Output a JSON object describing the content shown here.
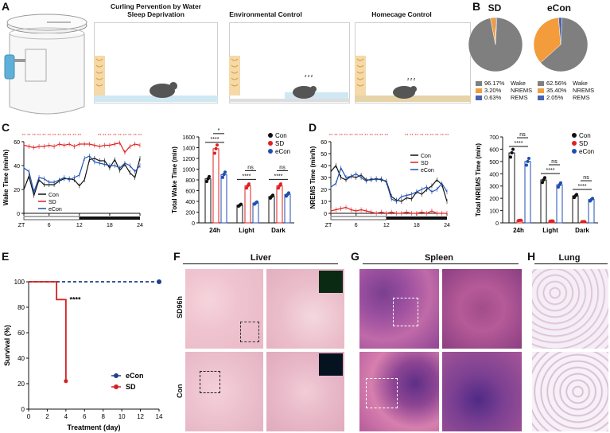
{
  "panels": {
    "A": "A",
    "B": "B",
    "C": "C",
    "D": "D",
    "E": "E",
    "F": "F",
    "G": "G",
    "H": "H"
  },
  "panelA": {
    "titles": [
      "Curling Pervention by Water\nSleep Deprivation",
      "Environmental Control",
      "Homecage Control"
    ],
    "zzz": "z z z"
  },
  "panelB": {
    "charts": [
      {
        "title": "SD",
        "slices": [
          {
            "label": "Wake",
            "value": 96.17,
            "text": "96.17%",
            "color": "#7f7f7f"
          },
          {
            "label": "NREMS",
            "value": 3.2,
            "text": "3.20%",
            "color": "#f39c3b"
          },
          {
            "label": "REMS",
            "value": 0.63,
            "text": "0.63%",
            "color": "#4863b0"
          }
        ]
      },
      {
        "title": "eCon",
        "slices": [
          {
            "label": "Wake",
            "value": 62.56,
            "text": "62.56%",
            "color": "#7f7f7f"
          },
          {
            "label": "NREMS",
            "value": 35.4,
            "text": "35.40%",
            "color": "#f39c3b"
          },
          {
            "label": "REMS",
            "value": 2.05,
            "text": "2.05%",
            "color": "#4863b0"
          }
        ]
      }
    ]
  },
  "chart_data": [
    {
      "id": "C-left",
      "type": "line",
      "ylabel": "Wake Time (min/h)",
      "xlabel": "ZT",
      "x": [
        1,
        2,
        3,
        4,
        5,
        6,
        7,
        8,
        9,
        10,
        11,
        12,
        13,
        14,
        15,
        16,
        17,
        18,
        19,
        20,
        21,
        22,
        23,
        24
      ],
      "xticks": [
        "ZT",
        "6",
        "12",
        "18",
        "24"
      ],
      "yticks": [
        "0",
        "20",
        "40",
        "60"
      ],
      "ylim": [
        0,
        60
      ],
      "series": [
        {
          "name": "Con",
          "color": "#111111",
          "values": [
            20,
            31,
            15,
            28,
            24,
            24,
            24,
            27,
            29,
            29,
            28,
            23,
            28,
            45,
            46,
            44,
            44,
            38,
            45,
            36,
            41,
            34,
            30,
            46
          ]
        },
        {
          "name": "SD",
          "color": "#e02020",
          "values": [
            57,
            56,
            55,
            56,
            56,
            57,
            56,
            58,
            57,
            58,
            56,
            58,
            58,
            58,
            57,
            56,
            57,
            57,
            58,
            59,
            51,
            56,
            58,
            57
          ]
        },
        {
          "name": "eCon",
          "color": "#1f4fb0",
          "values": [
            38,
            35,
            18,
            30,
            29,
            26,
            26,
            28,
            30,
            28,
            30,
            32,
            46,
            48,
            43,
            42,
            41,
            40,
            40,
            38,
            42,
            40,
            35,
            40
          ]
        }
      ]
    },
    {
      "id": "C-right",
      "type": "bar",
      "ylabel": "Total Wake Time (min)",
      "categories": [
        "24h",
        "Light",
        "Dark"
      ],
      "yticks": [
        "0",
        "200",
        "400",
        "600",
        "800",
        "1000",
        "1200",
        "1400",
        "1600"
      ],
      "ylim": [
        0,
        1600
      ],
      "series": [
        {
          "name": "Con",
          "color": "#111111",
          "values": [
            820,
            330,
            490
          ]
        },
        {
          "name": "SD",
          "color": "#e02020",
          "values": [
            1380,
            690,
            690
          ]
        },
        {
          "name": "eCon",
          "color": "#1f4fb0",
          "values": [
            900,
            370,
            530
          ]
        }
      ],
      "sig": [
        {
          "text": "*",
          "level": "top-24h"
        },
        {
          "text": "****"
        },
        {
          "text": "ns"
        },
        {
          "text": "****"
        },
        {
          "text": "ns"
        },
        {
          "text": "****"
        }
      ]
    },
    {
      "id": "D-left",
      "type": "line",
      "ylabel": "NREMS Time (min/h)",
      "xlabel": "ZT",
      "x": [
        1,
        2,
        3,
        4,
        5,
        6,
        7,
        8,
        9,
        10,
        11,
        12,
        13,
        14,
        15,
        16,
        17,
        18,
        19,
        20,
        21,
        22,
        23,
        24
      ],
      "xticks": [
        "ZT",
        "6",
        "12",
        "18",
        "24"
      ],
      "yticks": [
        "0",
        "10",
        "20",
        "30",
        "40",
        "50",
        "60"
      ],
      "ylim": [
        0,
        60
      ],
      "series": [
        {
          "name": "Con",
          "color": "#111111",
          "values": [
            35,
            40,
            30,
            28,
            31,
            30,
            32,
            28,
            28,
            29,
            28,
            27,
            14,
            11,
            10,
            13,
            12,
            18,
            16,
            20,
            23,
            28,
            24,
            10
          ]
        },
        {
          "name": "SD",
          "color": "#e02020",
          "values": [
            2,
            3,
            4,
            5,
            3,
            2,
            3,
            2,
            1,
            0,
            1,
            0,
            1,
            0,
            0,
            1,
            0,
            0,
            1,
            0,
            2,
            0,
            0,
            0
          ]
        },
        {
          "name": "eCon",
          "color": "#1f4fb0",
          "values": [
            22,
            25,
            38,
            30,
            31,
            33,
            30,
            27,
            29,
            28,
            29,
            26,
            12,
            10,
            14,
            15,
            16,
            18,
            20,
            22,
            18,
            20,
            25,
            18
          ]
        }
      ]
    },
    {
      "id": "D-right",
      "type": "bar",
      "ylabel": "Total NREMS Time (min)",
      "categories": [
        "24h",
        "Light",
        "Dark"
      ],
      "yticks": [
        "0",
        "100",
        "200",
        "300",
        "400",
        "500",
        "600",
        "700"
      ],
      "ylim": [
        0,
        700
      ],
      "series": [
        {
          "name": "Con",
          "color": "#111111",
          "values": [
            570,
            350,
            220
          ]
        },
        {
          "name": "SD",
          "color": "#e02020",
          "values": [
            20,
            15,
            10
          ]
        },
        {
          "name": "eCon",
          "color": "#1f4fb0",
          "values": [
            500,
            310,
            190
          ]
        }
      ],
      "sig": [
        {
          "text": "ns"
        },
        {
          "text": "****"
        },
        {
          "text": "ns"
        },
        {
          "text": "****"
        },
        {
          "text": "ns"
        },
        {
          "text": "****"
        }
      ]
    },
    {
      "id": "E",
      "type": "line",
      "ylabel": "Survival (%)",
      "xlabel": "Treatment (day)",
      "xticks": [
        "0",
        "2",
        "4",
        "6",
        "8",
        "10",
        "12",
        "14"
      ],
      "yticks": [
        "0",
        "20",
        "40",
        "60",
        "80",
        "100"
      ],
      "xlim": [
        0,
        14
      ],
      "ylim": [
        0,
        100
      ],
      "series": [
        {
          "name": "eCon",
          "color": "#1f3f8f",
          "style": "dashed",
          "points": [
            [
              0,
              100
            ],
            [
              14,
              100
            ]
          ]
        },
        {
          "name": "SD",
          "color": "#d42020",
          "style": "step",
          "points": [
            [
              0,
              100
            ],
            [
              3,
              100
            ],
            [
              3,
              86
            ],
            [
              4,
              86
            ],
            [
              4,
              22
            ]
          ]
        }
      ],
      "sig": "****"
    }
  ],
  "panelC": {
    "legend": [
      "Con",
      "SD",
      "eCon"
    ]
  },
  "panelD": {
    "legend": [
      "Con",
      "SD",
      "eCon"
    ]
  },
  "panelF": {
    "title": "Liver",
    "rows": [
      "SD96h",
      "Con"
    ]
  },
  "panelG": {
    "title": "Spleen"
  },
  "panelH": {
    "title": "Lung"
  }
}
